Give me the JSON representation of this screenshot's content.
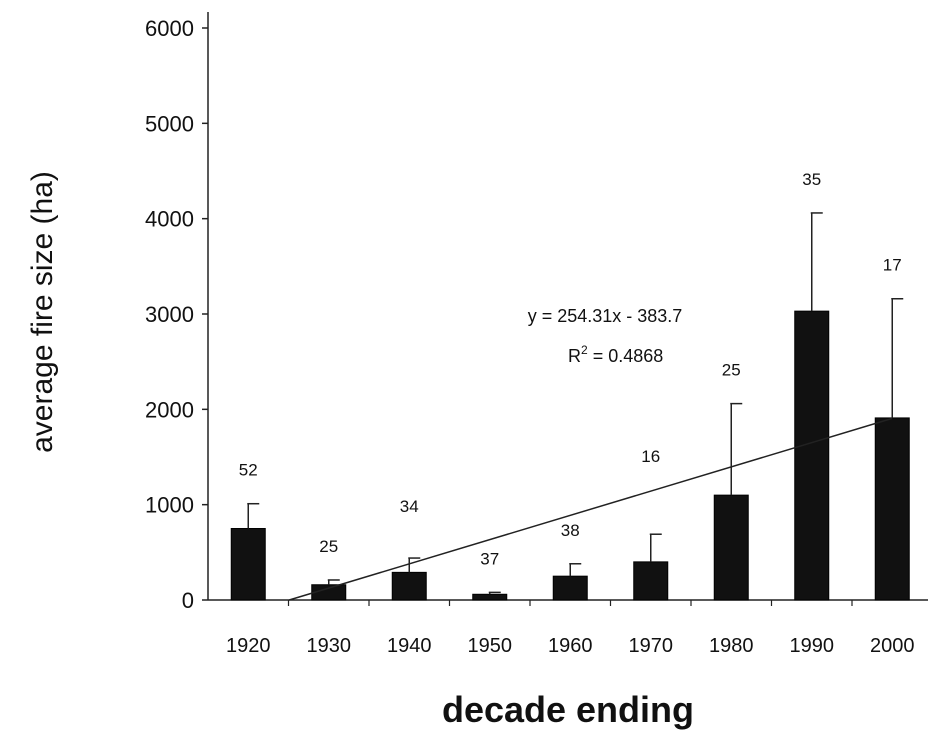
{
  "chart_data": {
    "type": "bar",
    "xlabel": "decade ending",
    "ylabel": "average fire size (ha)",
    "ylim": [
      0,
      6000
    ],
    "yticks": [
      0,
      1000,
      2000,
      3000,
      4000,
      5000,
      6000
    ],
    "categories": [
      "1920",
      "1930",
      "1940",
      "1950",
      "1960",
      "1970",
      "1980",
      "1990",
      "2000"
    ],
    "series": [
      {
        "values": [
          750,
          160,
          290,
          60,
          250,
          400,
          1100,
          3030,
          1910
        ],
        "error_upper": [
          1010,
          210,
          440,
          80,
          380,
          690,
          2060,
          4060,
          3160
        ],
        "counts": [
          "52",
          "25",
          "34",
          "37",
          "38",
          "16",
          "25",
          "35",
          "17"
        ]
      }
    ],
    "trendline": {
      "equation": "y = 254.31x - 383.7",
      "r_squared": "R2 = 0.4868",
      "r_prefix": "R",
      "r_sup": "2",
      "r_suffix": " = 0.4868",
      "slope": 254.31,
      "intercept": -383.7
    },
    "colors": {
      "bar": "#111111",
      "line": "#222222"
    },
    "grid": false
  }
}
